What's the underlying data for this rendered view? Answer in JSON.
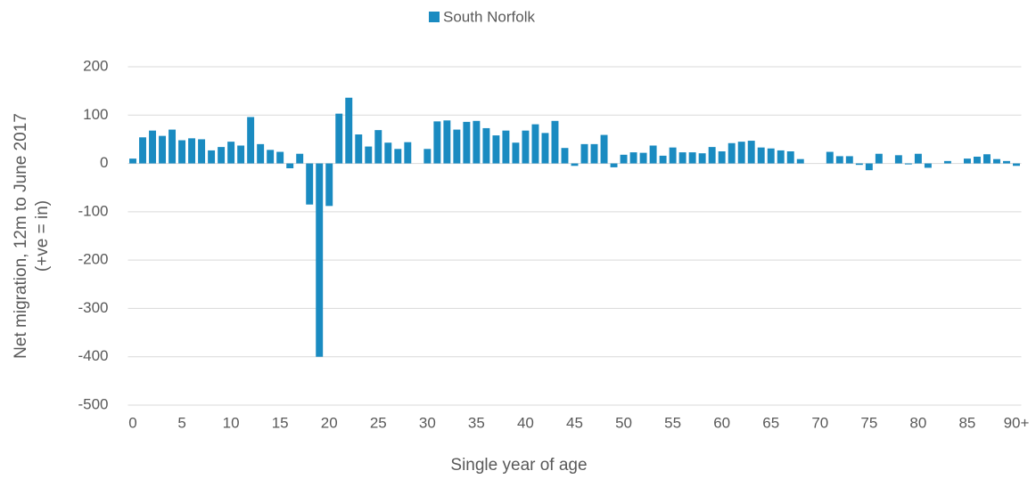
{
  "chart_data": {
    "type": "bar",
    "legend": "top",
    "series": [
      {
        "name": "South Norfolk",
        "color": "#1a8bc1",
        "values": [
          10,
          54,
          68,
          57,
          70,
          48,
          52,
          50,
          27,
          34,
          45,
          37,
          96,
          40,
          28,
          24,
          -10,
          20,
          -85,
          -400,
          -88,
          103,
          136,
          60,
          35,
          69,
          43,
          30,
          44,
          0,
          30,
          87,
          89,
          70,
          86,
          88,
          73,
          58,
          68,
          43,
          68,
          81,
          63,
          88,
          32,
          -5,
          40,
          40,
          59,
          -8,
          18,
          23,
          22,
          37,
          16,
          33,
          23,
          23,
          21,
          34,
          25,
          42,
          45,
          47,
          33,
          31,
          27,
          25,
          9,
          0,
          0,
          24,
          15,
          15,
          -3,
          -14,
          20,
          0,
          17,
          -2,
          20,
          -9,
          0,
          5,
          0,
          10,
          14,
          19,
          9,
          5,
          -5
        ]
      }
    ],
    "categories": [
      "0",
      null,
      null,
      null,
      null,
      "5",
      null,
      null,
      null,
      null,
      "10",
      null,
      null,
      null,
      null,
      "15",
      null,
      null,
      null,
      null,
      "20",
      null,
      null,
      null,
      null,
      "25",
      null,
      null,
      null,
      null,
      "30",
      null,
      null,
      null,
      null,
      "35",
      null,
      null,
      null,
      null,
      "40",
      null,
      null,
      null,
      null,
      "45",
      null,
      null,
      null,
      null,
      "50",
      null,
      null,
      null,
      null,
      "55",
      null,
      null,
      null,
      null,
      "60",
      null,
      null,
      null,
      null,
      "65",
      null,
      null,
      null,
      null,
      "70",
      null,
      null,
      null,
      null,
      "75",
      null,
      null,
      null,
      null,
      "80",
      null,
      null,
      null,
      null,
      "85",
      null,
      null,
      null,
      null,
      "90+"
    ],
    "xlabel": "Single year of age",
    "ylabel": [
      "Net migration, 12m to June 2017",
      "(+ve = in)"
    ],
    "ylim": [
      -500,
      200
    ],
    "yticks": [
      -500,
      -400,
      -300,
      -200,
      -100,
      0,
      100,
      200
    ],
    "grid": true
  }
}
